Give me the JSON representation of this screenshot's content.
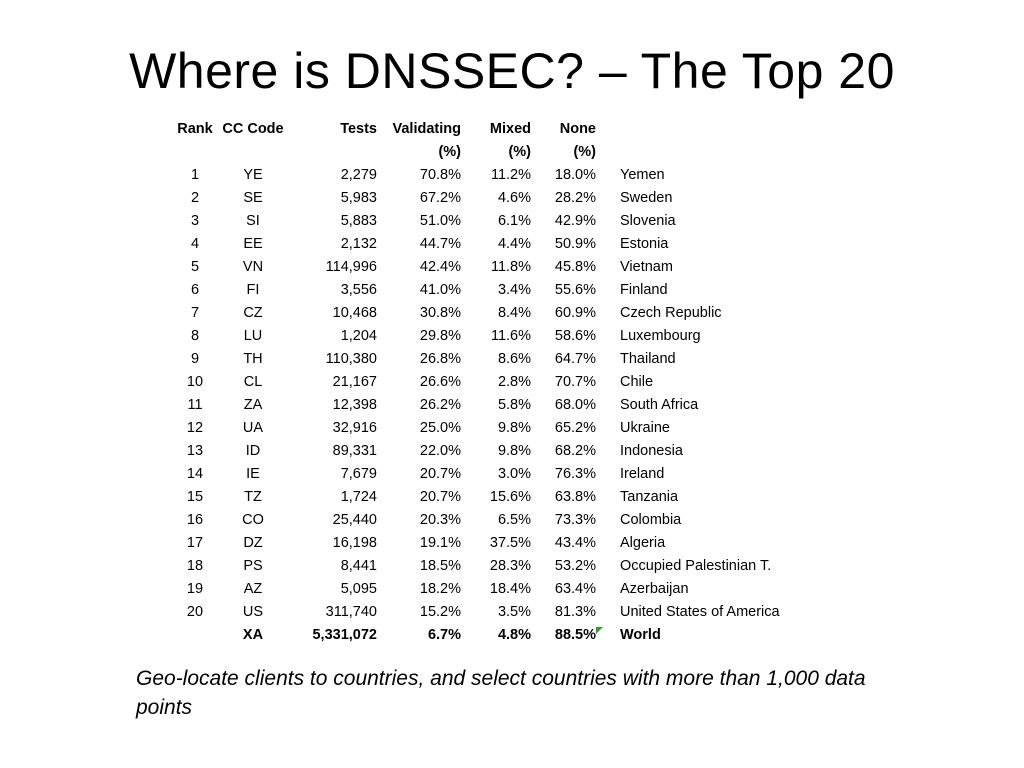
{
  "title": "Where is DNSSEC? – The Top 20",
  "table": {
    "headers": {
      "rank": "Rank",
      "cc": "CC Code",
      "tests": "Tests",
      "validating": "Validating",
      "validating_unit": "(%)",
      "mixed": "Mixed",
      "mixed_unit": "(%)",
      "none": "None",
      "none_unit": "(%)"
    },
    "rows": [
      {
        "rank": "1",
        "cc": "YE",
        "tests": "2,279",
        "validating": "70.8%",
        "mixed": "11.2%",
        "none": "18.0%",
        "country": "Yemen"
      },
      {
        "rank": "2",
        "cc": "SE",
        "tests": "5,983",
        "validating": "67.2%",
        "mixed": "4.6%",
        "none": "28.2%",
        "country": "Sweden"
      },
      {
        "rank": "3",
        "cc": "SI",
        "tests": "5,883",
        "validating": "51.0%",
        "mixed": "6.1%",
        "none": "42.9%",
        "country": "Slovenia"
      },
      {
        "rank": "4",
        "cc": "EE",
        "tests": "2,132",
        "validating": "44.7%",
        "mixed": "4.4%",
        "none": "50.9%",
        "country": "Estonia"
      },
      {
        "rank": "5",
        "cc": "VN",
        "tests": "114,996",
        "validating": "42.4%",
        "mixed": "11.8%",
        "none": "45.8%",
        "country": "Vietnam"
      },
      {
        "rank": "6",
        "cc": "FI",
        "tests": "3,556",
        "validating": "41.0%",
        "mixed": "3.4%",
        "none": "55.6%",
        "country": "Finland"
      },
      {
        "rank": "7",
        "cc": "CZ",
        "tests": "10,468",
        "validating": "30.8%",
        "mixed": "8.4%",
        "none": "60.9%",
        "country": "Czech Republic"
      },
      {
        "rank": "8",
        "cc": "LU",
        "tests": "1,204",
        "validating": "29.8%",
        "mixed": "11.6%",
        "none": "58.6%",
        "country": "Luxembourg"
      },
      {
        "rank": "9",
        "cc": "TH",
        "tests": "110,380",
        "validating": "26.8%",
        "mixed": "8.6%",
        "none": "64.7%",
        "country": "Thailand"
      },
      {
        "rank": "10",
        "cc": "CL",
        "tests": "21,167",
        "validating": "26.6%",
        "mixed": "2.8%",
        "none": "70.7%",
        "country": "Chile"
      },
      {
        "rank": "11",
        "cc": "ZA",
        "tests": "12,398",
        "validating": "26.2%",
        "mixed": "5.8%",
        "none": "68.0%",
        "country": "South Africa"
      },
      {
        "rank": "12",
        "cc": "UA",
        "tests": "32,916",
        "validating": "25.0%",
        "mixed": "9.8%",
        "none": "65.2%",
        "country": "Ukraine"
      },
      {
        "rank": "13",
        "cc": "ID",
        "tests": "89,331",
        "validating": "22.0%",
        "mixed": "9.8%",
        "none": "68.2%",
        "country": "Indonesia"
      },
      {
        "rank": "14",
        "cc": "IE",
        "tests": "7,679",
        "validating": "20.7%",
        "mixed": "3.0%",
        "none": "76.3%",
        "country": "Ireland"
      },
      {
        "rank": "15",
        "cc": "TZ",
        "tests": "1,724",
        "validating": "20.7%",
        "mixed": "15.6%",
        "none": "63.8%",
        "country": "Tanzania"
      },
      {
        "rank": "16",
        "cc": "CO",
        "tests": "25,440",
        "validating": "20.3%",
        "mixed": "6.5%",
        "none": "73.3%",
        "country": "Colombia"
      },
      {
        "rank": "17",
        "cc": "DZ",
        "tests": "16,198",
        "validating": "19.1%",
        "mixed": "37.5%",
        "none": "43.4%",
        "country": "Algeria"
      },
      {
        "rank": "18",
        "cc": "PS",
        "tests": "8,441",
        "validating": "18.5%",
        "mixed": "28.3%",
        "none": "53.2%",
        "country": "Occupied Palestinian T."
      },
      {
        "rank": "19",
        "cc": "AZ",
        "tests": "5,095",
        "validating": "18.2%",
        "mixed": "18.4%",
        "none": "63.4%",
        "country": "Azerbaijan"
      },
      {
        "rank": "20",
        "cc": "US",
        "tests": "311,740",
        "validating": "15.2%",
        "mixed": "3.5%",
        "none": "81.3%",
        "country": "United States of America"
      }
    ],
    "world": {
      "rank": "",
      "cc": "XA",
      "tests": "5,331,072",
      "validating": "6.7%",
      "mixed": "4.8%",
      "none": "88.5%",
      "country": "World"
    }
  },
  "footnote": "Geo-locate clients to countries, and select countries with more than 1,000 data points",
  "colors": {
    "corner_mark": "#2e9e2e"
  }
}
